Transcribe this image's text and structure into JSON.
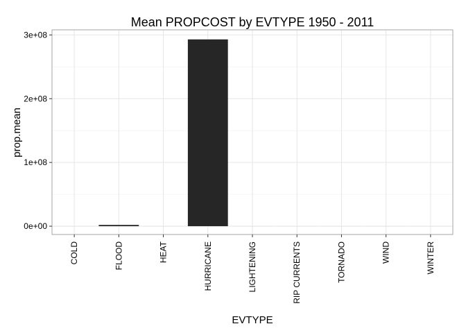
{
  "chart_data": {
    "type": "bar",
    "title": "Mean PROPCOST by EVTYPE 1950 - 2011",
    "xlabel": "EVTYPE",
    "ylabel": "prop.mean",
    "categories": [
      "COLD",
      "FLOOD",
      "HEAT",
      "HURRICANE",
      "LIGHTENING",
      "RIP CURRENTS",
      "TORNADO",
      "WIND",
      "WINTER"
    ],
    "values": [
      0,
      2000000,
      0,
      293000000,
      0,
      0,
      0,
      0,
      0
    ],
    "ylim": [
      -13000000,
      308000000
    ],
    "yticks": [
      0,
      100000000,
      200000000,
      300000000
    ],
    "ytick_labels": [
      "0e+00",
      "1e+08",
      "2e+08",
      "3e+08"
    ],
    "grid": true,
    "bar_color": "#262626"
  }
}
